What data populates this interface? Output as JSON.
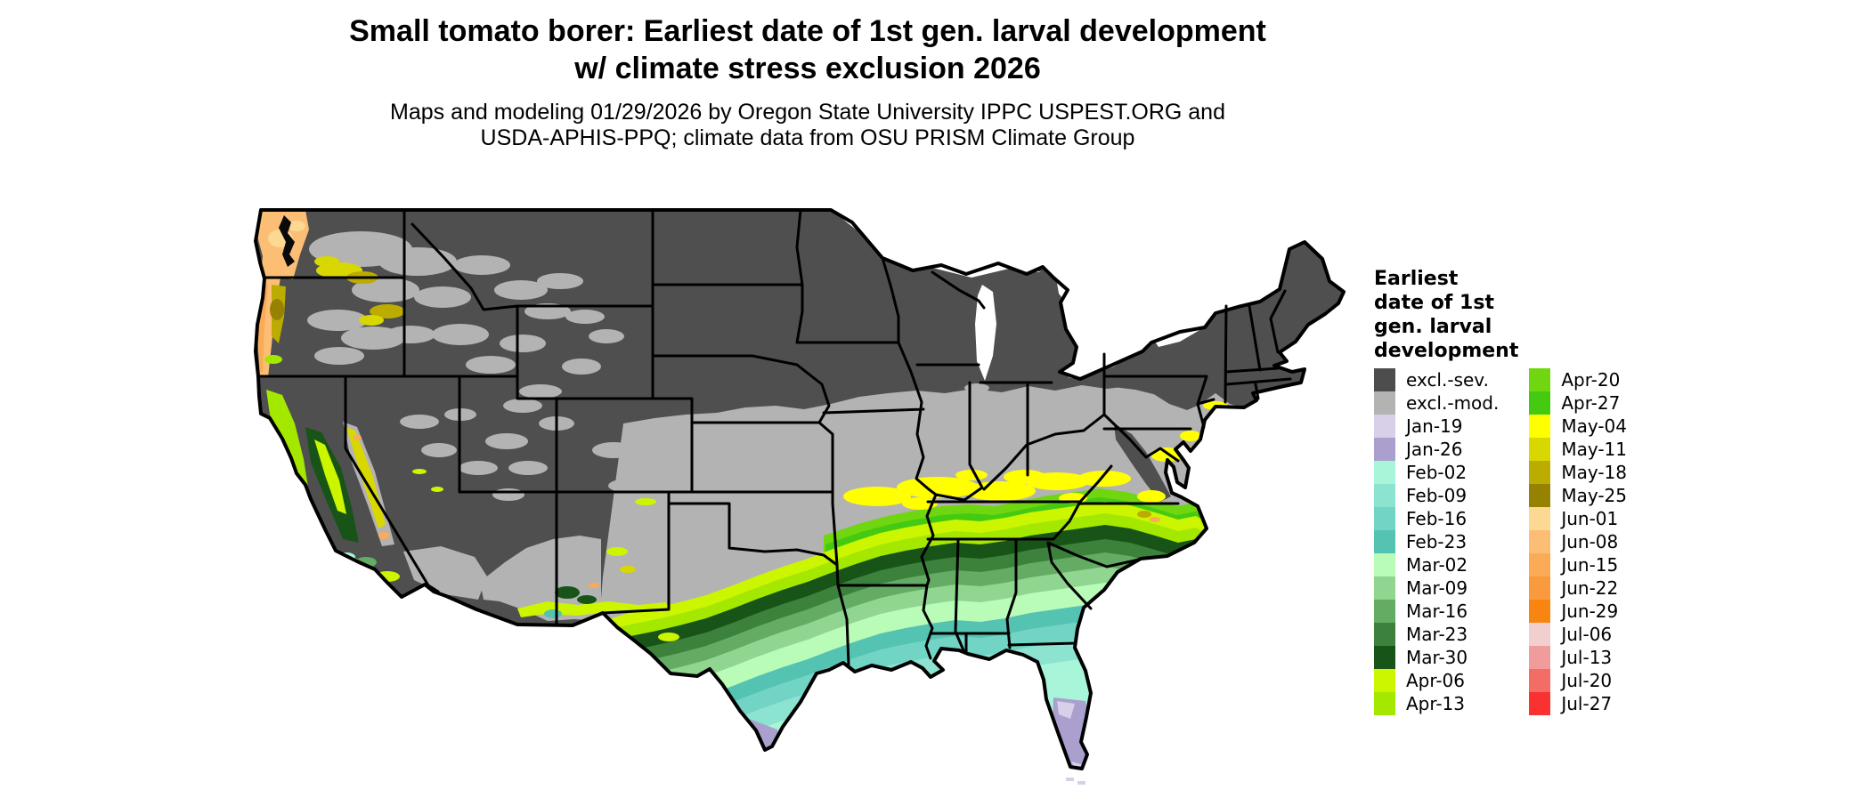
{
  "title": {
    "line1": "Small tomato borer: Earliest date of 1st gen. larval development",
    "line2": "w/ climate stress exclusion 2026"
  },
  "subtitle": {
    "line1": "Maps and modeling 01/29/2026 by Oregon State University IPPC USPEST.ORG and",
    "line2": "USDA-APHIS-PPQ; climate data from OSU PRISM Climate Group"
  },
  "map": {
    "description": "Choropleth raster map of the contiguous United States showing earliest date of first generation larval development; northern states excluded (gray), date bands progress from purple (January) along the Gulf and south Florida through teal (February), green (March), chartreuse (April) and yellow (May) toward the excluded gray interior; Pacific Northwest coast shows June (orange) dates."
  },
  "legend": {
    "title_lines": [
      "Earliest",
      "date of 1st",
      "gen. larval",
      "development"
    ],
    "columns": [
      {
        "items": [
          {
            "label": "excl.-sev.",
            "key": "excl_sev"
          },
          {
            "label": "excl.-mod.",
            "key": "excl_mod"
          },
          {
            "label": "Jan-19",
            "key": "jan19"
          },
          {
            "label": "Jan-26",
            "key": "jan26"
          },
          {
            "label": "Feb-02",
            "key": "feb02"
          },
          {
            "label": "Feb-09",
            "key": "feb09"
          },
          {
            "label": "Feb-16",
            "key": "feb16"
          },
          {
            "label": "Feb-23",
            "key": "feb23"
          },
          {
            "label": "Mar-02",
            "key": "mar02"
          },
          {
            "label": "Mar-09",
            "key": "mar09"
          },
          {
            "label": "Mar-16",
            "key": "mar16"
          },
          {
            "label": "Mar-23",
            "key": "mar23"
          },
          {
            "label": "Mar-30",
            "key": "mar30"
          },
          {
            "label": "Apr-06",
            "key": "apr06"
          },
          {
            "label": "Apr-13",
            "key": "apr13"
          }
        ]
      },
      {
        "items": [
          {
            "label": "Apr-20",
            "key": "apr20"
          },
          {
            "label": "Apr-27",
            "key": "apr27"
          },
          {
            "label": "May-04",
            "key": "may04"
          },
          {
            "label": "May-11",
            "key": "may11"
          },
          {
            "label": "May-18",
            "key": "may18"
          },
          {
            "label": "May-25",
            "key": "may25"
          },
          {
            "label": "Jun-01",
            "key": "jun01"
          },
          {
            "label": "Jun-08",
            "key": "jun08"
          },
          {
            "label": "Jun-15",
            "key": "jun15"
          },
          {
            "label": "Jun-22",
            "key": "jun22"
          },
          {
            "label": "Jun-29",
            "key": "jun29"
          },
          {
            "label": "Jul-06",
            "key": "jul06"
          },
          {
            "label": "Jul-13",
            "key": "jul13"
          },
          {
            "label": "Jul-20",
            "key": "jul20"
          },
          {
            "label": "Jul-27",
            "key": "jul27"
          }
        ]
      }
    ]
  },
  "palette": {
    "excl_sev": "#4d4d4d",
    "excl_mod": "#b3b3b3",
    "jan19": "#d8d0e8",
    "jan26": "#ab9fce",
    "feb02": "#a9f5d9",
    "feb09": "#8ce3cf",
    "feb16": "#72d4c4",
    "feb23": "#54c3b2",
    "mar02": "#b8fcb8",
    "mar09": "#90d690",
    "mar16": "#64ab64",
    "mar23": "#3c813c",
    "mar30": "#185418",
    "apr06": "#ccf500",
    "apr13": "#a4e800",
    "apr20": "#70d60f",
    "apr27": "#44cb11",
    "may04": "#ffff00",
    "may11": "#d8d800",
    "may18": "#bcac00",
    "may25": "#978100",
    "jun01": "#fcd993",
    "jun08": "#fcbe74",
    "jun15": "#fbaa56",
    "jun22": "#fa9a3f",
    "jun29": "#f98511",
    "jul06": "#f2cfcf",
    "jul13": "#f19c9c",
    "jul20": "#f46c66",
    "jul27": "#f93131",
    "base": "#4f4f4f",
    "water": "#ffffff",
    "ink": "#000000",
    "sound": "#0a0a0a"
  }
}
